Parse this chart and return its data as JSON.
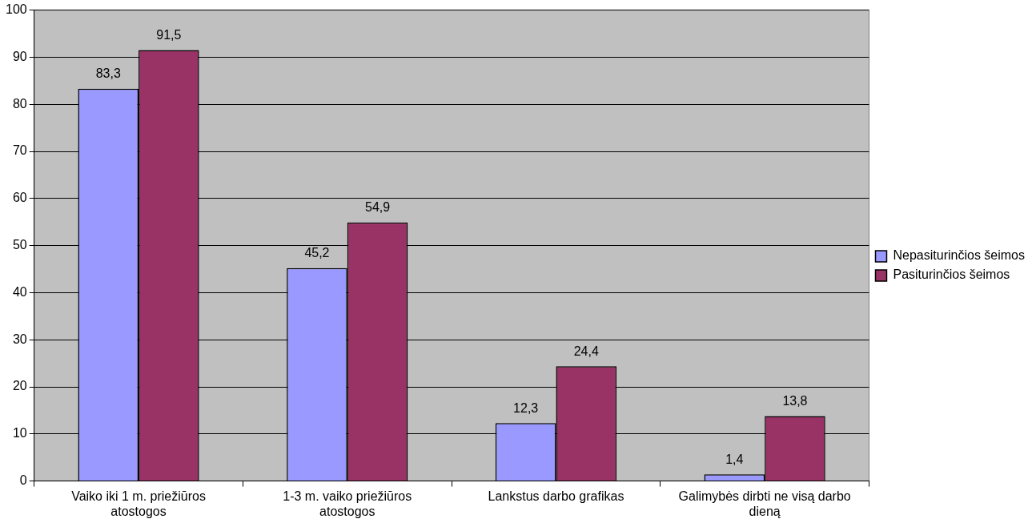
{
  "chart_data": {
    "type": "bar",
    "categories": [
      "Vaiko iki 1 m. priežiūros atostogos",
      "1-3 m. vaiko priežiūros atostogos",
      "Lankstus darbo grafikas",
      "Galimybės dirbti ne visą darbo dieną"
    ],
    "series": [
      {
        "name": "Nepasiturinčios šeimos",
        "color": "#9999ff",
        "values": [
          83.3,
          45.2,
          12.3,
          1.4
        ],
        "value_labels": [
          "83,3",
          "45,2",
          "12,3",
          "1,4"
        ]
      },
      {
        "name": "Pasiturinčios šeimos",
        "color": "#993366",
        "values": [
          91.5,
          54.9,
          24.4,
          13.8
        ],
        "value_labels": [
          "91,5",
          "54,9",
          "24,4",
          "13,8"
        ]
      }
    ],
    "ylim": [
      0,
      100
    ],
    "yticks": [
      0,
      10,
      20,
      30,
      40,
      50,
      60,
      70,
      80,
      90,
      100
    ],
    "grid": "y",
    "legend": "right"
  }
}
